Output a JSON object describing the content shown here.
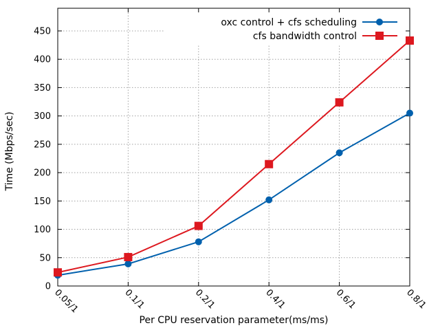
{
  "chart_data": {
    "type": "line",
    "xlabel": "Per CPU reservation parameter(ms/ms)",
    "ylabel": "Time (Mbps/sec)",
    "categories": [
      "0.05/1",
      "0.1/1",
      "0.2/1",
      "0.4/1",
      "0.6/1",
      "0.8/1"
    ],
    "ylim": [
      0,
      490
    ],
    "yticks": [
      0,
      50,
      100,
      150,
      200,
      250,
      300,
      350,
      400,
      450
    ],
    "grid": true,
    "legend_position": "top-right",
    "series": [
      {
        "name": "oxc control + cfs scheduling",
        "values": [
          19,
          39,
          78,
          152,
          235,
          305
        ],
        "color": "#0060ad",
        "marker": "circle"
      },
      {
        "name": "cfs bandwidth control",
        "values": [
          24,
          51,
          106,
          215,
          324,
          433
        ],
        "color": "#dd181f",
        "marker": "square"
      }
    ]
  }
}
